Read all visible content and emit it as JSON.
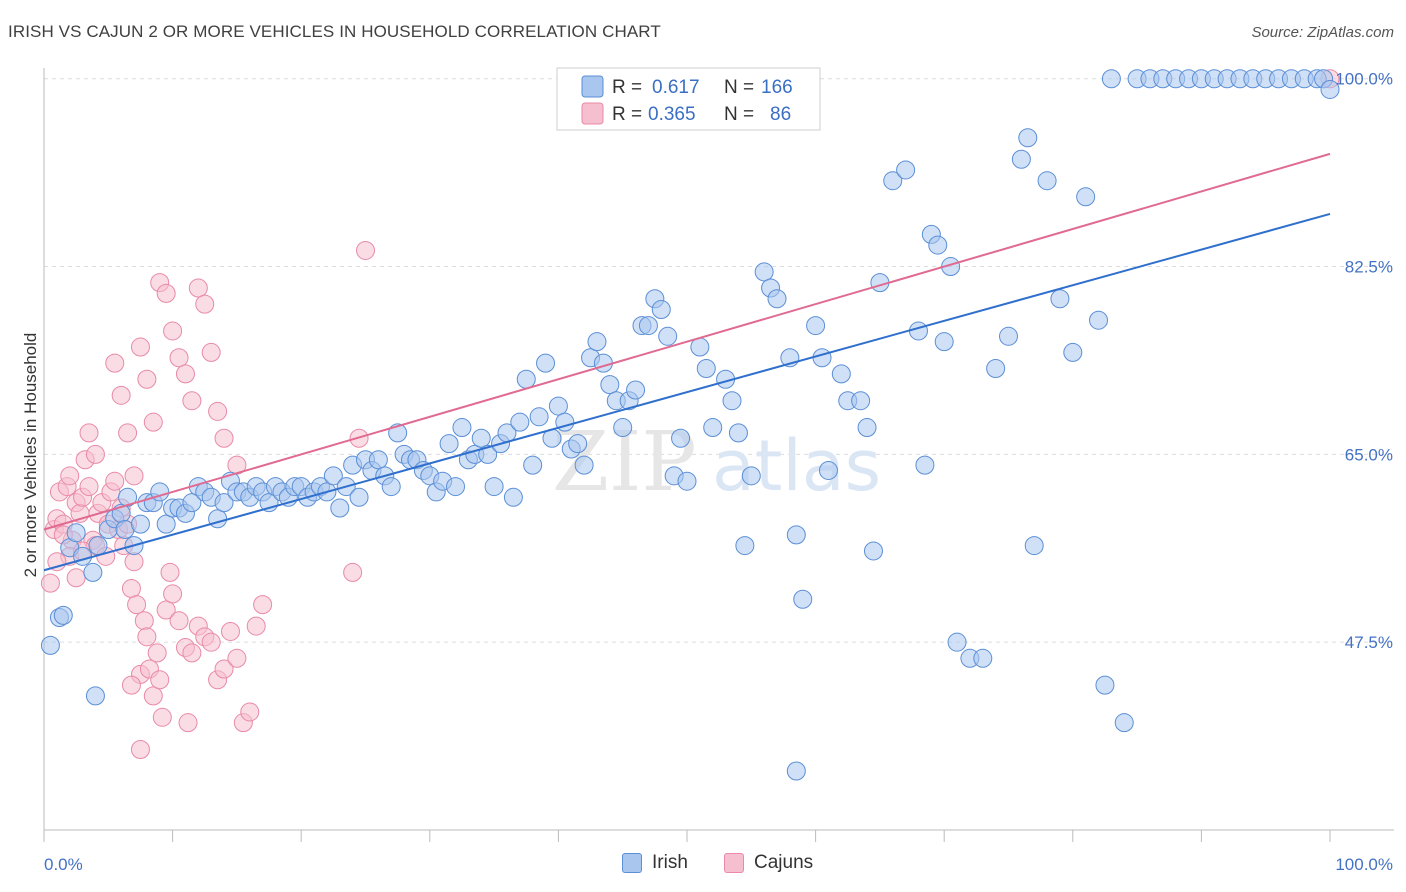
{
  "title": "IRISH VS CAJUN 2 OR MORE VEHICLES IN HOUSEHOLD CORRELATION CHART",
  "source": "Source: ZipAtlas.com",
  "watermark": {
    "zip": "ZIP",
    "atlas": "atlas"
  },
  "legend": {
    "irish": {
      "r_label": "R =",
      "r_value": "0.617",
      "n_label": "N =",
      "n_value": "166"
    },
    "cajuns": {
      "r_label": "R =",
      "r_value": "0.365",
      "n_label": "N =",
      "n_value": "86"
    }
  },
  "bottom_legend": {
    "irish": "Irish",
    "cajuns": "Cajuns"
  },
  "colors": {
    "irish_fill": "#a9c6ef",
    "irish_stroke": "#5b8fd6",
    "irish_line": "#2f6fcd",
    "cajun_fill": "#f6bfd0",
    "cajun_stroke": "#e98aa8",
    "cajun_line": "#e06a92",
    "tick_blue": "#4472c4"
  },
  "chart_data": {
    "type": "scatter",
    "title": "IRISH VS CAJUN 2 OR MORE VEHICLES IN HOUSEHOLD CORRELATION CHART",
    "xlabel": "",
    "ylabel": "2 or more Vehicles in Household",
    "xlim": [
      0,
      100
    ],
    "ylim": [
      30,
      101
    ],
    "x_tick_labels": [
      "0.0%",
      "100.0%"
    ],
    "y_ticks": [
      47.5,
      65.0,
      82.5,
      100.0
    ],
    "y_tick_labels": [
      "47.5%",
      "65.0%",
      "82.5%",
      "100.0%"
    ],
    "grid": true,
    "legend_position": "top-center",
    "series": [
      {
        "name": "Irish",
        "r": 0.617,
        "n": 166,
        "trendline": [
          [
            0,
            54.2
          ],
          [
            100,
            87.4
          ]
        ],
        "points": [
          [
            0.5,
            47.2
          ],
          [
            1.2,
            49.8
          ],
          [
            1.5,
            50.0
          ],
          [
            2.0,
            56.3
          ],
          [
            2.5,
            57.7
          ],
          [
            3.0,
            55.5
          ],
          [
            3.8,
            54.0
          ],
          [
            4.2,
            56.5
          ],
          [
            5.0,
            58.0
          ],
          [
            5.5,
            59.0
          ],
          [
            6.0,
            59.5
          ],
          [
            6.3,
            58.0
          ],
          [
            6.5,
            61.0
          ],
          [
            7.0,
            56.5
          ],
          [
            7.5,
            58.5
          ],
          [
            8.0,
            60.5
          ],
          [
            8.5,
            60.5
          ],
          [
            9.0,
            61.5
          ],
          [
            9.5,
            58.5
          ],
          [
            10.0,
            60.0
          ],
          [
            10.5,
            60.0
          ],
          [
            11.0,
            59.5
          ],
          [
            11.5,
            60.5
          ],
          [
            12.0,
            62.0
          ],
          [
            12.5,
            61.5
          ],
          [
            13.0,
            61.0
          ],
          [
            13.5,
            59.0
          ],
          [
            14.0,
            60.5
          ],
          [
            14.5,
            62.5
          ],
          [
            15.0,
            61.5
          ],
          [
            15.5,
            61.5
          ],
          [
            16.0,
            61.0
          ],
          [
            16.5,
            62.0
          ],
          [
            17.0,
            61.5
          ],
          [
            17.5,
            60.5
          ],
          [
            18.0,
            62.0
          ],
          [
            18.5,
            61.5
          ],
          [
            19.0,
            61.0
          ],
          [
            19.5,
            62.0
          ],
          [
            20.0,
            62.0
          ],
          [
            20.5,
            61.0
          ],
          [
            21.0,
            61.5
          ],
          [
            21.5,
            62.0
          ],
          [
            22.0,
            61.5
          ],
          [
            22.5,
            63.0
          ],
          [
            23.0,
            60.0
          ],
          [
            23.5,
            62.0
          ],
          [
            24.0,
            64.0
          ],
          [
            24.5,
            61.0
          ],
          [
            25.0,
            64.5
          ],
          [
            25.5,
            63.5
          ],
          [
            26.0,
            64.5
          ],
          [
            26.5,
            63.0
          ],
          [
            27.0,
            62.0
          ],
          [
            27.5,
            67.0
          ],
          [
            28.0,
            65.0
          ],
          [
            28.5,
            64.5
          ],
          [
            29.0,
            64.5
          ],
          [
            29.5,
            63.5
          ],
          [
            30.0,
            63.0
          ],
          [
            30.5,
            61.5
          ],
          [
            31.0,
            62.5
          ],
          [
            31.5,
            66.0
          ],
          [
            32.0,
            62.0
          ],
          [
            32.5,
            67.5
          ],
          [
            33.0,
            64.5
          ],
          [
            33.5,
            65.0
          ],
          [
            34.0,
            66.5
          ],
          [
            34.5,
            65.0
          ],
          [
            35.0,
            62.0
          ],
          [
            35.5,
            66.0
          ],
          [
            36.0,
            67.0
          ],
          [
            36.5,
            61.0
          ],
          [
            37.0,
            68.0
          ],
          [
            37.5,
            72.0
          ],
          [
            38.0,
            64.0
          ],
          [
            38.5,
            68.5
          ],
          [
            39.0,
            73.5
          ],
          [
            39.5,
            66.5
          ],
          [
            40.0,
            69.5
          ],
          [
            40.5,
            68.0
          ],
          [
            41.0,
            65.5
          ],
          [
            41.5,
            66.0
          ],
          [
            42.0,
            64.0
          ],
          [
            42.5,
            74.0
          ],
          [
            43.0,
            75.5
          ],
          [
            43.5,
            73.5
          ],
          [
            44.0,
            71.5
          ],
          [
            44.5,
            70.0
          ],
          [
            45.0,
            67.5
          ],
          [
            45.5,
            70.0
          ],
          [
            46.0,
            71.0
          ],
          [
            46.5,
            77.0
          ],
          [
            47.0,
            77.0
          ],
          [
            47.5,
            79.5
          ],
          [
            48.0,
            78.5
          ],
          [
            48.5,
            76.0
          ],
          [
            49.0,
            63.0
          ],
          [
            49.5,
            66.5
          ],
          [
            50.0,
            62.5
          ],
          [
            51.0,
            75.0
          ],
          [
            51.5,
            73.0
          ],
          [
            52.0,
            67.5
          ],
          [
            53.0,
            72.0
          ],
          [
            53.5,
            70.0
          ],
          [
            54.0,
            67.0
          ],
          [
            54.5,
            56.5
          ],
          [
            55.0,
            63.0
          ],
          [
            56.0,
            82.0
          ],
          [
            56.5,
            80.5
          ],
          [
            57.0,
            79.5
          ],
          [
            58.0,
            74.0
          ],
          [
            58.5,
            57.5
          ],
          [
            59.0,
            51.5
          ],
          [
            60.0,
            77.0
          ],
          [
            60.5,
            74.0
          ],
          [
            61.0,
            63.5
          ],
          [
            62.0,
            72.5
          ],
          [
            62.5,
            70.0
          ],
          [
            63.5,
            70.0
          ],
          [
            64.0,
            67.5
          ],
          [
            64.5,
            56.0
          ],
          [
            65.0,
            81.0
          ],
          [
            66.0,
            90.5
          ],
          [
            67.0,
            91.5
          ],
          [
            68.0,
            76.5
          ],
          [
            68.5,
            64.0
          ],
          [
            69.0,
            85.5
          ],
          [
            69.5,
            84.5
          ],
          [
            70.0,
            75.5
          ],
          [
            70.5,
            82.5
          ],
          [
            71.0,
            47.5
          ],
          [
            72.0,
            46.0
          ],
          [
            73.0,
            46.0
          ],
          [
            74.0,
            73.0
          ],
          [
            75.0,
            76.0
          ],
          [
            76.0,
            92.5
          ],
          [
            76.5,
            94.5
          ],
          [
            77.0,
            56.5
          ],
          [
            78.0,
            90.5
          ],
          [
            79.0,
            79.5
          ],
          [
            80.0,
            74.5
          ],
          [
            81.0,
            89.0
          ],
          [
            82.0,
            77.5
          ],
          [
            82.5,
            43.5
          ],
          [
            83.0,
            100.0
          ],
          [
            84.0,
            40.0
          ],
          [
            85.0,
            100.0
          ],
          [
            86.0,
            100.0
          ],
          [
            87.0,
            100.0
          ],
          [
            88.0,
            100.0
          ],
          [
            89.0,
            100.0
          ],
          [
            90.0,
            100.0
          ],
          [
            91.0,
            100.0
          ],
          [
            92.0,
            100.0
          ],
          [
            93.0,
            100.0
          ],
          [
            94.0,
            100.0
          ],
          [
            95.0,
            100.0
          ],
          [
            96.0,
            100.0
          ],
          [
            97.0,
            100.0
          ],
          [
            98.0,
            100.0
          ],
          [
            99.0,
            100.0
          ],
          [
            99.5,
            100.0
          ],
          [
            100.0,
            99.0
          ],
          [
            4.0,
            42.5
          ],
          [
            58.5,
            35.5
          ]
        ]
      },
      {
        "name": "Cajuns",
        "r": 0.365,
        "n": 86,
        "trendline": [
          [
            0,
            58.0
          ],
          [
            100,
            93.0
          ]
        ],
        "points": [
          [
            0.5,
            53.0
          ],
          [
            0.8,
            58.0
          ],
          [
            1.0,
            59.0
          ],
          [
            1.2,
            61.5
          ],
          [
            1.5,
            58.5
          ],
          [
            1.8,
            62.0
          ],
          [
            2.0,
            63.0
          ],
          [
            2.2,
            57.0
          ],
          [
            2.5,
            60.5
          ],
          [
            2.8,
            59.5
          ],
          [
            3.0,
            61.0
          ],
          [
            3.2,
            64.5
          ],
          [
            3.5,
            62.0
          ],
          [
            3.8,
            57.0
          ],
          [
            4.0,
            56.5
          ],
          [
            4.2,
            59.5
          ],
          [
            4.5,
            60.5
          ],
          [
            4.8,
            55.5
          ],
          [
            5.0,
            58.5
          ],
          [
            5.2,
            61.5
          ],
          [
            5.5,
            62.5
          ],
          [
            5.8,
            58.0
          ],
          [
            6.0,
            60.0
          ],
          [
            6.2,
            56.5
          ],
          [
            6.5,
            58.5
          ],
          [
            6.8,
            52.5
          ],
          [
            7.0,
            55.0
          ],
          [
            7.2,
            51.0
          ],
          [
            7.5,
            44.5
          ],
          [
            7.8,
            49.5
          ],
          [
            8.0,
            48.0
          ],
          [
            8.2,
            45.0
          ],
          [
            8.5,
            42.5
          ],
          [
            8.8,
            46.5
          ],
          [
            9.0,
            44.0
          ],
          [
            9.2,
            40.5
          ],
          [
            9.5,
            50.5
          ],
          [
            9.8,
            54.0
          ],
          [
            10.0,
            52.0
          ],
          [
            10.5,
            49.5
          ],
          [
            11.0,
            47.0
          ],
          [
            11.5,
            46.5
          ],
          [
            12.0,
            49.0
          ],
          [
            12.5,
            48.0
          ],
          [
            13.0,
            47.5
          ],
          [
            13.5,
            44.0
          ],
          [
            14.0,
            45.0
          ],
          [
            14.5,
            48.5
          ],
          [
            15.0,
            46.0
          ],
          [
            15.5,
            40.0
          ],
          [
            16.0,
            41.0
          ],
          [
            16.5,
            49.0
          ],
          [
            17.0,
            51.0
          ],
          [
            5.5,
            73.5
          ],
          [
            6.0,
            70.5
          ],
          [
            6.5,
            67.0
          ],
          [
            7.0,
            63.0
          ],
          [
            7.5,
            75.0
          ],
          [
            8.0,
            72.0
          ],
          [
            8.5,
            68.0
          ],
          [
            9.0,
            81.0
          ],
          [
            9.5,
            80.0
          ],
          [
            10.0,
            76.5
          ],
          [
            10.5,
            74.0
          ],
          [
            11.0,
            72.5
          ],
          [
            11.5,
            70.0
          ],
          [
            12.0,
            80.5
          ],
          [
            12.5,
            79.0
          ],
          [
            13.0,
            74.5
          ],
          [
            13.5,
            69.0
          ],
          [
            14.0,
            66.5
          ],
          [
            15.0,
            64.0
          ],
          [
            3.5,
            67.0
          ],
          [
            4.0,
            65.0
          ],
          [
            2.0,
            55.5
          ],
          [
            2.5,
            53.5
          ],
          [
            3.0,
            56.0
          ],
          [
            1.5,
            57.5
          ],
          [
            1.0,
            55.0
          ],
          [
            6.8,
            43.5
          ],
          [
            7.5,
            37.5
          ],
          [
            11.2,
            40.0
          ],
          [
            24.0,
            54.0
          ],
          [
            24.5,
            66.5
          ],
          [
            25.0,
            84.0
          ],
          [
            100.0,
            100.0
          ]
        ]
      }
    ]
  }
}
